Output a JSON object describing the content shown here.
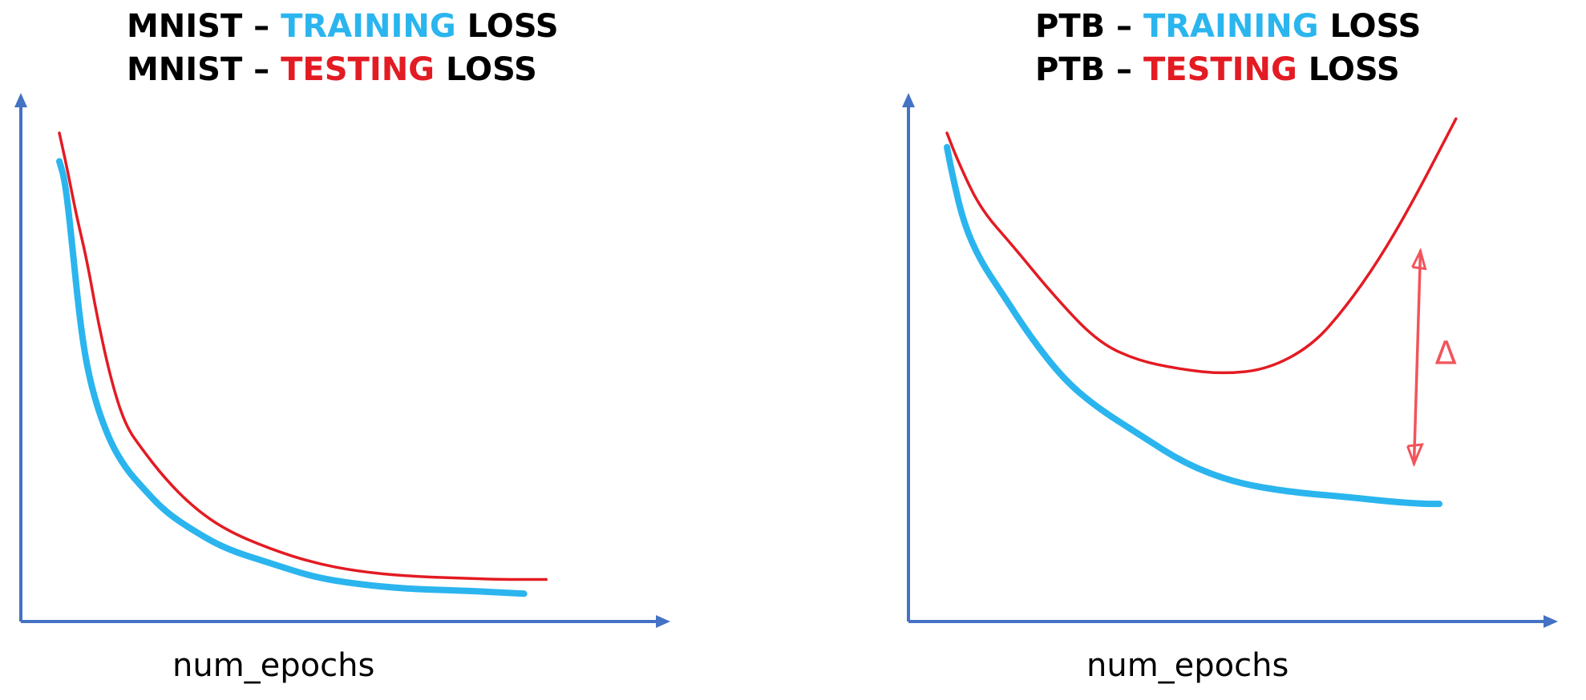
{
  "colors": {
    "axis": "#4472C4",
    "training": "#2BB5EE",
    "testing": "#E31B23",
    "annotation": "#F2545B",
    "text": "#000000"
  },
  "chart_data": [
    {
      "type": "line",
      "title_lines": [
        {
          "prefix": "MNIST – ",
          "highlight": "TRAINING",
          "highlight_color": "#2BB5EE",
          "suffix": " LOSS"
        },
        {
          "prefix": "MNIST – ",
          "highlight": "TESTING",
          "highlight_color": "#E31B23",
          "suffix": " LOSS"
        }
      ],
      "xlabel": "num_epochs",
      "ylabel": "",
      "xlim": [
        0,
        10
      ],
      "ylim": [
        0,
        10
      ],
      "grid": false,
      "series": [
        {
          "role": "training",
          "color": "#2BB5EE",
          "x": [
            0.0,
            0.1,
            0.2,
            0.4,
            0.6,
            0.9,
            1.2,
            1.5,
            1.9,
            2.4,
            3.0,
            3.8,
            4.6,
            5.4,
            6.3,
            7.2,
            7.9,
            8.4
          ],
          "y": [
            9.4,
            9.0,
            8.0,
            5.7,
            4.5,
            3.5,
            2.9,
            2.5,
            2.0,
            1.6,
            1.2,
            0.9,
            0.6,
            0.45,
            0.35,
            0.32,
            0.28,
            0.25
          ]
        },
        {
          "role": "testing",
          "color": "#E31B23",
          "x": [
            0.0,
            0.15,
            0.3,
            0.5,
            0.7,
            0.95,
            1.2,
            1.5,
            1.9,
            2.4,
            3.0,
            3.8,
            4.6,
            5.4,
            6.3,
            7.2,
            8.0,
            8.5,
            8.8
          ],
          "y": [
            10.0,
            9.2,
            8.3,
            7.3,
            6.0,
            4.7,
            3.8,
            3.3,
            2.7,
            2.1,
            1.6,
            1.2,
            0.9,
            0.72,
            0.62,
            0.58,
            0.55,
            0.55,
            0.55
          ]
        }
      ]
    },
    {
      "type": "line",
      "title_lines": [
        {
          "prefix": "PTB – ",
          "highlight": "TRAINING",
          "highlight_color": "#2BB5EE",
          "suffix": " LOSS"
        },
        {
          "prefix": "PTB – ",
          "highlight": "TESTING",
          "highlight_color": "#E31B23",
          "suffix": " LOSS"
        }
      ],
      "xlabel": "num_epochs",
      "ylabel": "",
      "xlim": [
        0,
        10
      ],
      "ylim": [
        0,
        10
      ],
      "grid": false,
      "series": [
        {
          "role": "training",
          "color": "#2BB5EE",
          "x": [
            0.0,
            0.1,
            0.3,
            0.6,
            1.0,
            1.5,
            2.1,
            2.7,
            3.5,
            4.3,
            5.2,
            6.2,
            7.2,
            8.0,
            8.6,
            8.9
          ],
          "y": [
            9.7,
            9.1,
            8.1,
            7.3,
            6.6,
            5.7,
            4.8,
            4.2,
            3.6,
            3.0,
            2.6,
            2.4,
            2.3,
            2.2,
            2.15,
            2.15
          ]
        },
        {
          "role": "testing",
          "color": "#E31B23",
          "x": [
            0.0,
            0.2,
            0.6,
            1.2,
            1.9,
            2.7,
            3.4,
            4.2,
            5.0,
            5.8,
            6.6,
            7.2,
            7.8,
            8.4,
            9.2
          ],
          "y": [
            10.0,
            9.4,
            8.4,
            7.6,
            6.6,
            5.6,
            5.2,
            5.0,
            4.9,
            5.0,
            5.5,
            6.3,
            7.3,
            8.5,
            10.3
          ]
        }
      ],
      "annotation": {
        "type": "double-arrow",
        "x": 8.5,
        "y_from": 7.5,
        "y_to": 3.0,
        "label": "Δ"
      }
    }
  ]
}
